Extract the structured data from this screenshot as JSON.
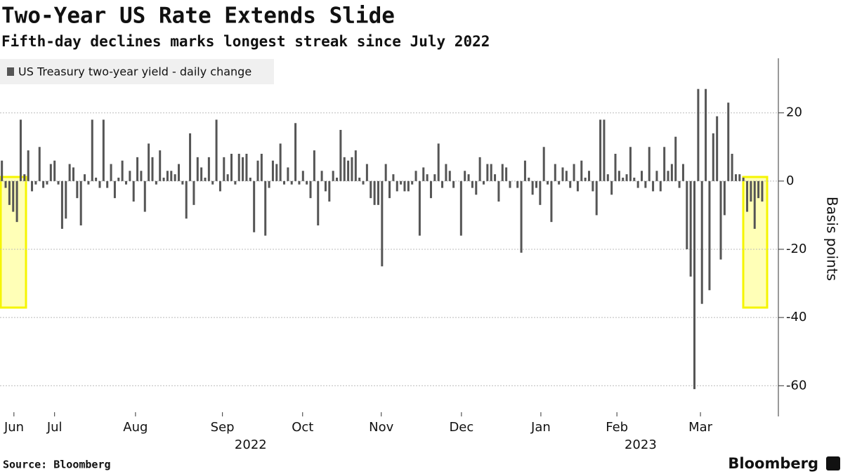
{
  "chart_data": {
    "type": "bar",
    "title": "Two-Year US Rate Extends Slide",
    "subtitle": "Fifth-day declines marks longest streak since July 2022",
    "source": "Source: Bloomberg",
    "brand": "Bloomberg",
    "y_label": "Basis points",
    "series": [
      {
        "name": "US Treasury two-year yield - daily change",
        "color": "#555555",
        "values": [
          6,
          -2,
          -7,
          -9,
          -12,
          18,
          2,
          9,
          -3,
          -1,
          10,
          -2,
          -1,
          5,
          6,
          -1,
          -14,
          -11,
          5,
          4,
          -5,
          -13,
          2,
          -1,
          18,
          1,
          -2,
          18,
          -2,
          5,
          -5,
          1,
          6,
          -1,
          3,
          -6,
          7,
          3,
          -9,
          11,
          7,
          -1,
          9,
          1,
          3,
          3,
          2,
          5,
          -1,
          -11,
          14,
          -7,
          7,
          4,
          1,
          7,
          -1,
          18,
          -3,
          7,
          2,
          8,
          -1,
          8,
          7,
          8,
          1,
          -15,
          6,
          8,
          -16,
          -2,
          6,
          5,
          11,
          -1,
          4,
          -1,
          17,
          -1,
          3,
          -1,
          -5,
          9,
          -13,
          3,
          -3,
          -6,
          3,
          1,
          15,
          7,
          6,
          7,
          9,
          1,
          -1,
          5,
          -5,
          -7,
          -7,
          -25,
          5,
          -5,
          2,
          -3,
          -1,
          -3,
          -3,
          -1,
          3,
          -16,
          4,
          2,
          -5,
          2,
          11,
          -2,
          5,
          3,
          -2,
          0,
          -16,
          3,
          2,
          -2,
          -4,
          7,
          -1,
          5,
          5,
          2,
          -6,
          5,
          4,
          -2,
          0,
          -2,
          -21,
          6,
          1,
          -4,
          -2,
          -7,
          10,
          -1,
          -12,
          5,
          -1,
          4,
          3,
          -2,
          5,
          -3,
          6,
          1,
          3,
          -3,
          -10,
          18,
          18,
          2,
          -4,
          8,
          3,
          1,
          2,
          10,
          1,
          -2,
          3,
          -2,
          10,
          -3,
          3,
          -3,
          10,
          3,
          5,
          13,
          -2,
          5,
          -20,
          -28,
          -61,
          27,
          -36,
          27,
          -32,
          14,
          19,
          -23,
          -10,
          23,
          8,
          2,
          2,
          1,
          -9,
          -6,
          -14,
          -5,
          -6
        ]
      }
    ],
    "xlim": [
      -0.5,
      206.3
    ],
    "xticks": [
      {
        "value": 3.2,
        "label": "Jun"
      },
      {
        "value": 14,
        "label": "Jul"
      },
      {
        "value": 35.5,
        "label": "Aug"
      },
      {
        "value": 58.6,
        "label": "Sep"
      },
      {
        "value": 79.9,
        "label": "Oct"
      },
      {
        "value": 100.8,
        "label": "Nov"
      },
      {
        "value": 122.1,
        "label": "Dec"
      },
      {
        "value": 143.2,
        "label": "Jan"
      },
      {
        "value": 163.4,
        "label": "Feb"
      },
      {
        "value": 185.6,
        "label": "Mar"
      }
    ],
    "year_ticks": [
      {
        "value": 66.1,
        "label": "2022"
      },
      {
        "value": 169.7,
        "label": "2023"
      }
    ],
    "ylim": [
      -69,
      36
    ],
    "yticks": [
      -60,
      -40,
      -20,
      0,
      20
    ],
    "grid": true
  }
}
